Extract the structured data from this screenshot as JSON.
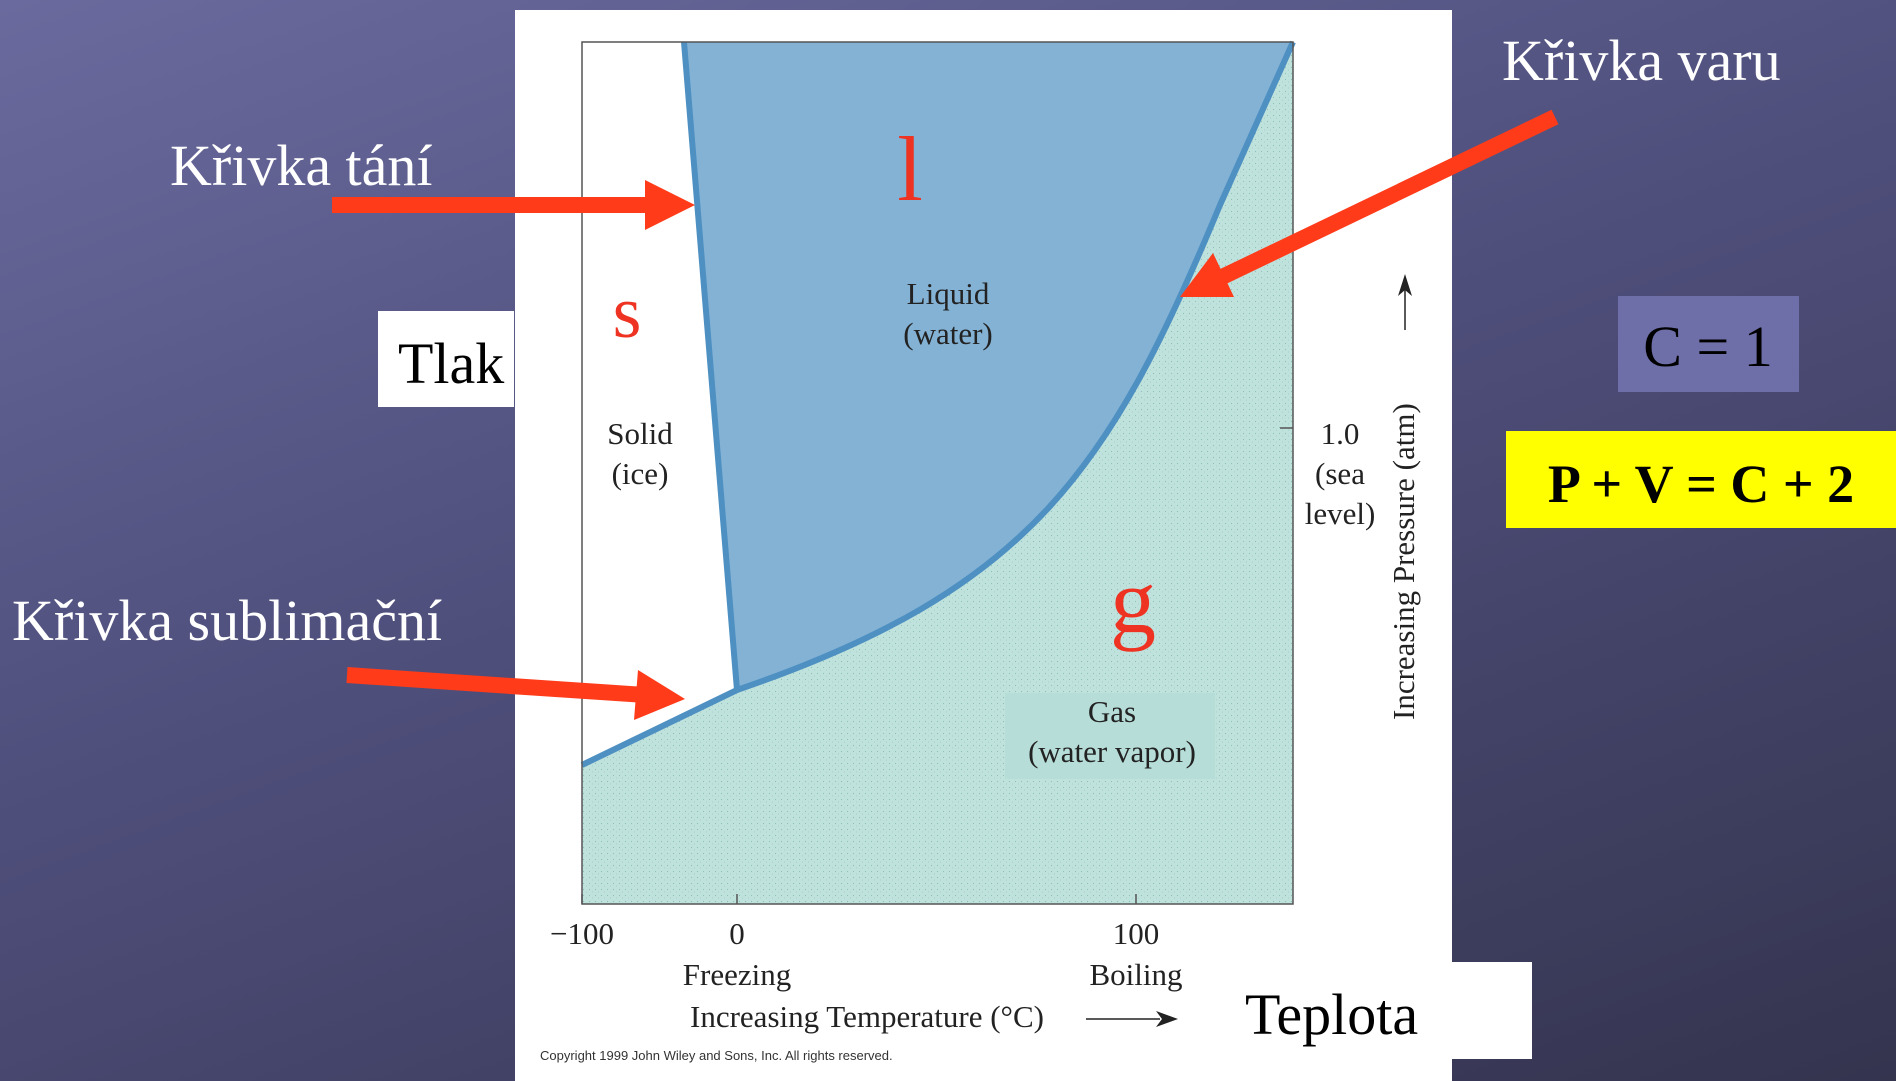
{
  "slide": {
    "labels": {
      "melting_curve": "Křivka tání",
      "boiling_curve": "Křivka varu",
      "sublimation_curve": "Křivka sublimační",
      "pressure": "Tlak",
      "temperature": "Teplota",
      "components": "C = 1",
      "phase_rule": "P + V = C + 2"
    },
    "phase_letters": {
      "solid": "s",
      "liquid": "l",
      "gas": "g"
    }
  },
  "diagram": {
    "regions": {
      "liquid_1": "Liquid",
      "liquid_2": "(water)",
      "solid_1": "Solid",
      "solid_2": "(ice)",
      "gas_1": "Gas",
      "gas_2": "(water vapor)"
    },
    "x_ticks": [
      "−100",
      "0",
      "100"
    ],
    "x_markers": {
      "freezing": "Freezing",
      "boiling": "Boiling"
    },
    "x_axis_label": "Increasing Temperature (°C)",
    "y_tick": {
      "value": "1.0",
      "line2": "(sea",
      "line3": "level)"
    },
    "y_axis_label": "Increasing Pressure (atm)",
    "copyright": "Copyright 1999 John Wiley and Sons, Inc. All rights reserved."
  },
  "colors": {
    "arrow": "#ff3b1a",
    "phase_letter": "#ee3322",
    "liquid": "#84b2d4",
    "gas": "#bfe2dd",
    "curve": "#4e90c2",
    "formula_bg": "#ffff00",
    "component_bg": "#6e6ea8"
  }
}
